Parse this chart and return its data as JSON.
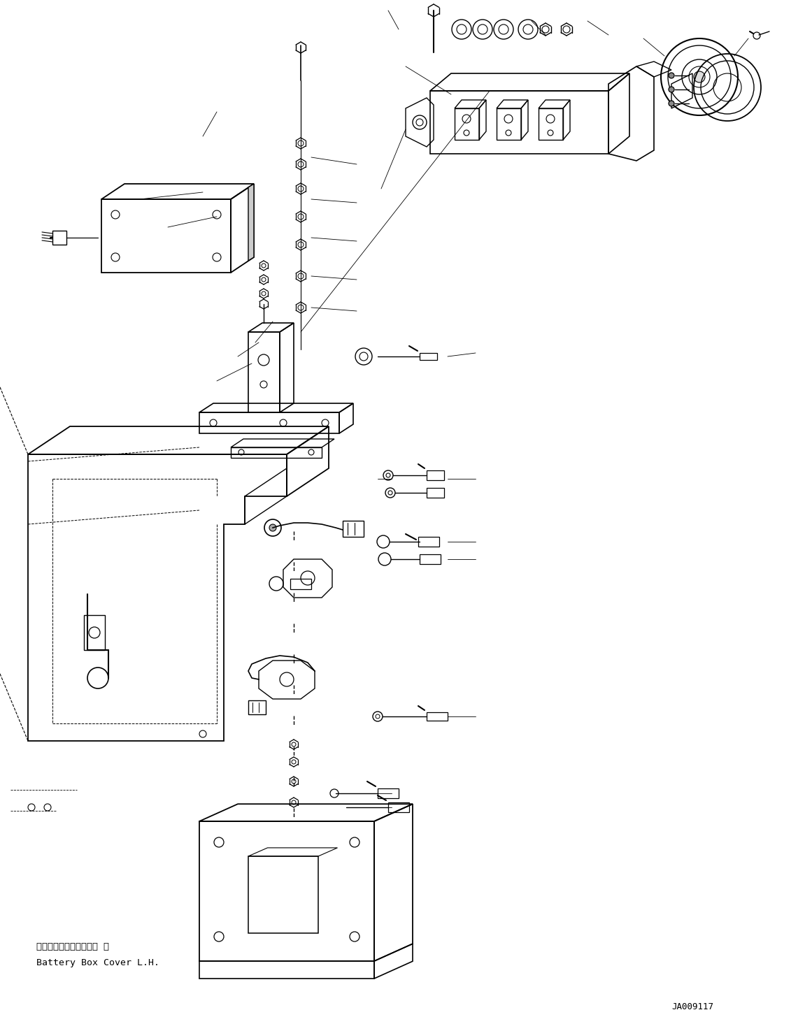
{
  "background_color": "#ffffff",
  "line_color": "#000000",
  "text_color": "#000000",
  "label_bottom_jp": "バッテリボックスカバー 左",
  "label_bottom_en": "Battery Box Cover L.H.",
  "part_number": "JA009117",
  "figsize": [
    11.61,
    14.55
  ],
  "dpi": 100
}
